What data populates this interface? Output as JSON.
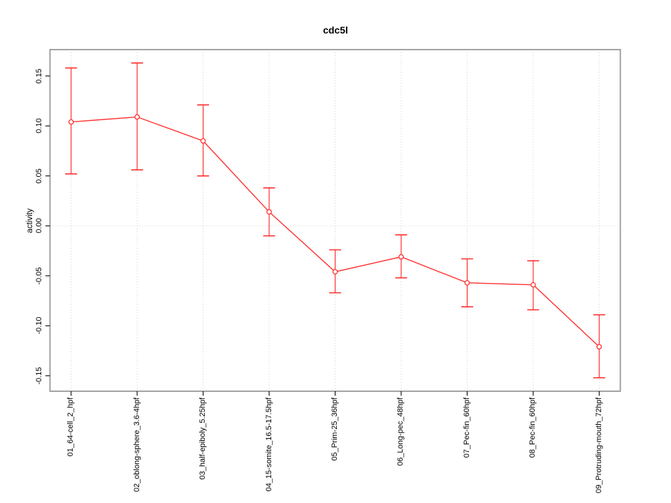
{
  "figure": {
    "title": "cdc5l",
    "y_axis_label": "activity"
  },
  "chart_data": {
    "type": "line",
    "title": "cdc5l",
    "xlabel": "",
    "ylabel": "activity",
    "categories": [
      "01_64-cell_2_hpf",
      "02_oblong-sphere_3.6-4hpf",
      "03_half-epiboly_5.25hpf",
      "04_15-somite_16.5-17.5hpf",
      "05_Prim-25_36hpf",
      "06_Long-pec_48hpf",
      "07_Pec-fin_60hpf",
      "08_Pec-fin_60hpf",
      "09_Protruding-mouth_72hpf"
    ],
    "series": [
      {
        "name": "activity",
        "marker": "open-circle",
        "values": [
          0.104,
          0.109,
          0.085,
          0.014,
          -0.046,
          -0.031,
          -0.057,
          -0.059,
          -0.121
        ],
        "error_high": [
          0.158,
          0.163,
          0.121,
          0.038,
          -0.024,
          -0.009,
          -0.033,
          -0.035,
          -0.089
        ],
        "error_low": [
          0.052,
          0.056,
          0.05,
          -0.01,
          -0.067,
          -0.052,
          -0.081,
          -0.084,
          -0.152
        ]
      }
    ],
    "yticks": [
      0.15,
      0.1,
      0.05,
      0.0,
      -0.05,
      -0.1,
      -0.15
    ],
    "ytick_labels": [
      "0.15",
      "0.10",
      "0.05",
      "0.00",
      "-0.05",
      "-0.10",
      "-0.15"
    ],
    "axes": {
      "xlim": [
        0.68,
        9.32
      ],
      "ylim": [
        -0.1655,
        0.1764
      ],
      "grid_vertical": "dotted line at each category",
      "grid_horizontal": "dotted line at y=0 only"
    },
    "legend": "none",
    "colors": {
      "series": "#ff3030",
      "grid": "#cfcfcf",
      "box": "#999999",
      "tick": "#000000",
      "text": "#000000",
      "background": "#ffffff"
    }
  }
}
